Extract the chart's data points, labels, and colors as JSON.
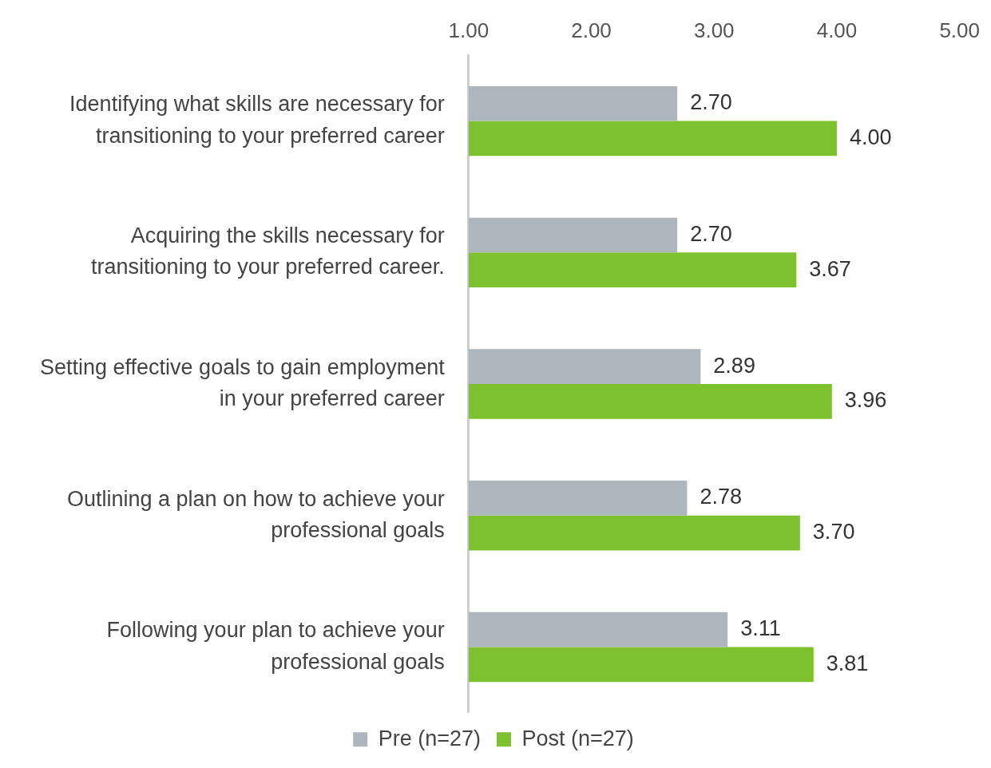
{
  "chart_data": {
    "type": "bar",
    "orientation": "horizontal",
    "categories": [
      "Identifying what skills are necessary for transitioning to your preferred career",
      "Acquiring the skills necessary for transitioning to your preferred career.",
      "Setting effective goals to gain employment in your preferred career",
      "Outlining a plan on how to achieve your professional goals",
      "Following your plan to achieve your professional goals"
    ],
    "series": [
      {
        "name": "Pre (n=27)",
        "color": "#adb5bd",
        "values": [
          2.7,
          2.7,
          2.89,
          2.78,
          3.11
        ],
        "value_labels": [
          "2.70",
          "2.70",
          "2.89",
          "2.78",
          "3.11"
        ]
      },
      {
        "name": "Post (n=27)",
        "color": "#7dc22e",
        "values": [
          4.0,
          3.67,
          3.96,
          3.7,
          3.81
        ],
        "value_labels": [
          "4.00",
          "3.67",
          "3.96",
          "3.70",
          "3.81"
        ]
      }
    ],
    "xlim": [
      1,
      5
    ],
    "xticks": [
      {
        "value": 1,
        "label": "1.00"
      },
      {
        "value": 2,
        "label": "2.00"
      },
      {
        "value": 3,
        "label": "3.00"
      },
      {
        "value": 4,
        "label": "4.00"
      },
      {
        "value": 5,
        "label": "5.00"
      }
    ],
    "grid": false,
    "legend": "bottom"
  }
}
